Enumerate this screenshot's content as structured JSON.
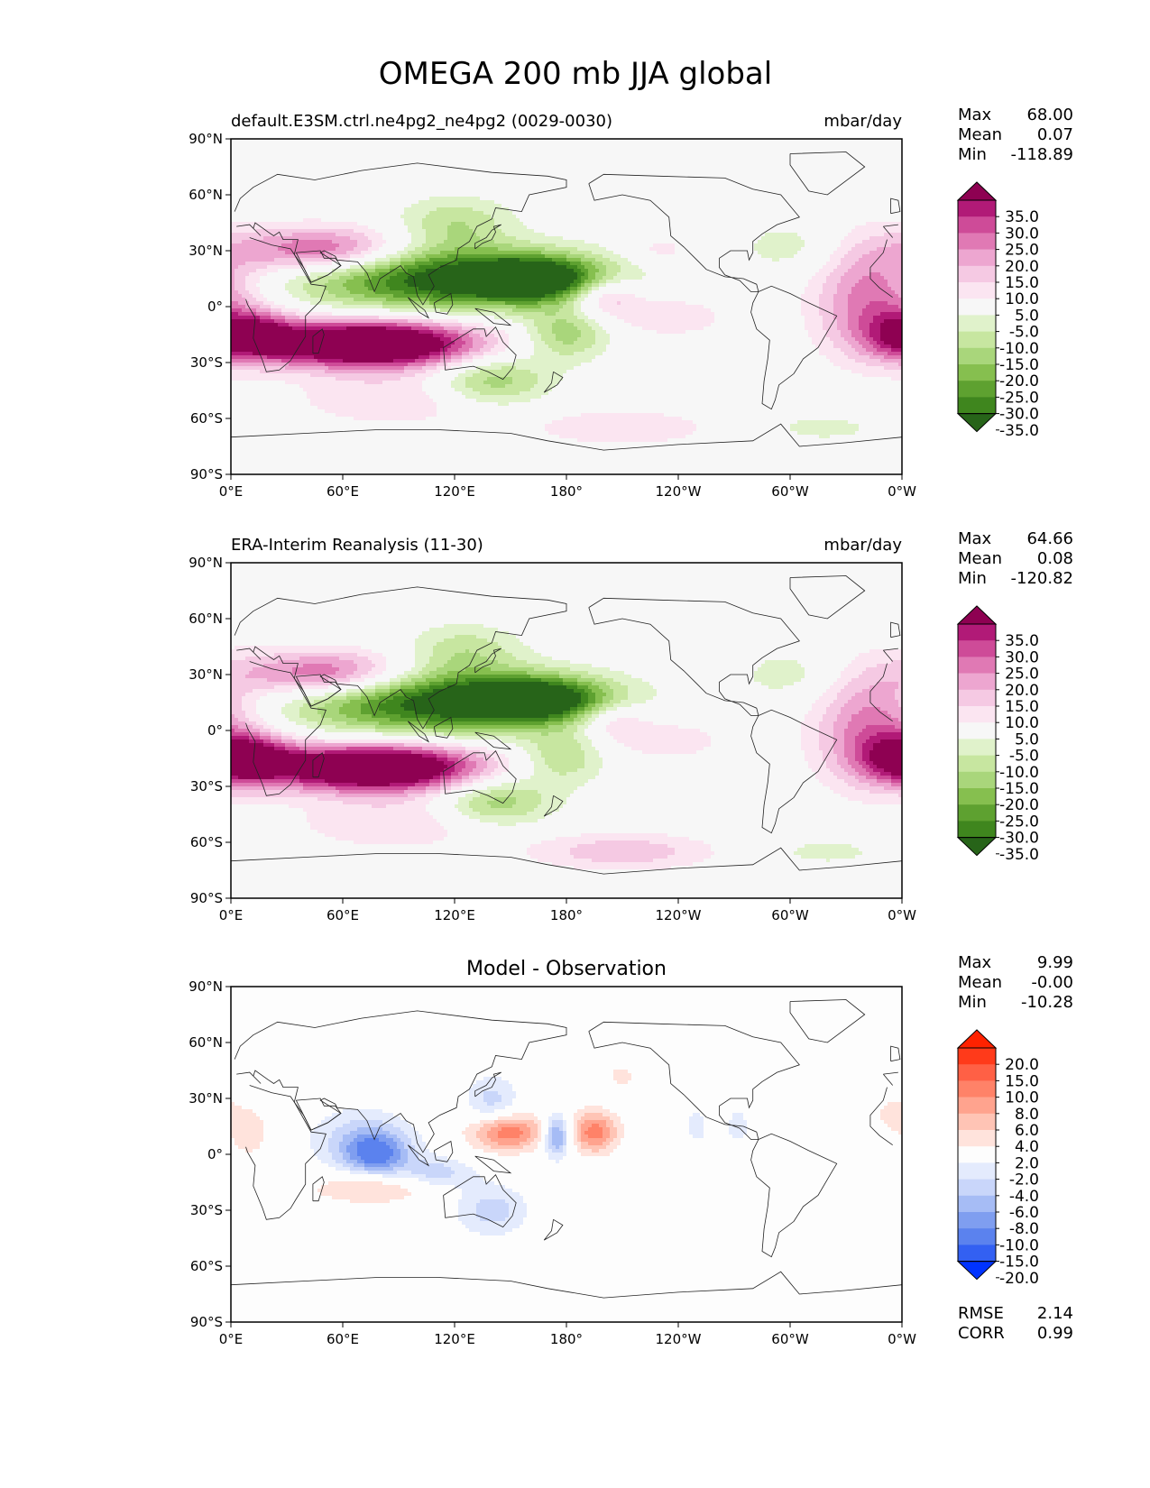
{
  "figure": {
    "title": "OMEGA 200 mb JJA global"
  },
  "axes": {
    "lat_ticks": [
      "90°N",
      "60°N",
      "30°N",
      "0°",
      "30°S",
      "60°S",
      "90°S"
    ],
    "lon_ticks": [
      "0°E",
      "60°E",
      "120°E",
      "180°",
      "120°W",
      "60°W",
      "0°W"
    ]
  },
  "colors": {
    "pg": [
      "#276419",
      "#3f861e",
      "#5ea130",
      "#86bf4f",
      "#a9d67b",
      "#c7e6a0",
      "#e0f2cb",
      "#f7f7f7",
      "#fbe5f1",
      "#f5c9e3",
      "#eda6d0",
      "#e079b4",
      "#ce4b98",
      "#b11a77",
      "#8e0152"
    ],
    "diff": [
      "#0033ff",
      "#3360f2",
      "#5b82ee",
      "#7f9ef0",
      "#a6bcf5",
      "#c9d6fa",
      "#e4ebfd",
      "#fdfdfd",
      "#ffe3dc",
      "#ffc4b5",
      "#ffa38e",
      "#ff8268",
      "#ff6045",
      "#ff3a1a",
      "#ff2200"
    ]
  },
  "panels": [
    {
      "id": "model",
      "left_title": "default.E3SM.ctrl.ne4pg2_ne4pg2 (0029-0030)",
      "center_title": "",
      "right_title": "mbar/day",
      "stats": [
        {
          "label": "Max",
          "value": "68.00"
        },
        {
          "label": "Mean",
          "value": "0.07"
        },
        {
          "label": "Min",
          "value": "-118.89"
        }
      ],
      "colorbar_labels": [
        "35.0",
        "30.0",
        "25.0",
        "20.0",
        "15.0",
        "10.0",
        "5.0",
        "-5.0",
        "-10.0",
        "-15.0",
        "-20.0",
        "-25.0",
        "-30.0",
        "-35.0"
      ],
      "palette": "pg"
    },
    {
      "id": "obs",
      "left_title": "ERA-Interim Reanalysis (11-30)",
      "center_title": "",
      "right_title": "mbar/day",
      "stats": [
        {
          "label": "Max",
          "value": "64.66"
        },
        {
          "label": "Mean",
          "value": "0.08"
        },
        {
          "label": "Min",
          "value": "-120.82"
        }
      ],
      "colorbar_labels": [
        "35.0",
        "30.0",
        "25.0",
        "20.0",
        "15.0",
        "10.0",
        "5.0",
        "-5.0",
        "-10.0",
        "-15.0",
        "-20.0",
        "-25.0",
        "-30.0",
        "-35.0"
      ],
      "palette": "pg"
    },
    {
      "id": "diff",
      "left_title": "",
      "center_title": "Model - Observation",
      "right_title": "",
      "stats": [
        {
          "label": "Max",
          "value": "9.99"
        },
        {
          "label": "Mean",
          "value": "-0.00"
        },
        {
          "label": "Min",
          "value": "-10.28"
        }
      ],
      "colorbar_labels": [
        "20.0",
        "15.0",
        "10.0",
        "8.0",
        "6.0",
        "4.0",
        "2.0",
        "-2.0",
        "-4.0",
        "-6.0",
        "-8.0",
        "-10.0",
        "-15.0",
        "-20.0"
      ],
      "palette": "diff",
      "metrics": [
        {
          "label": "RMSE",
          "value": "2.14"
        },
        {
          "label": "CORR",
          "value": "0.99"
        }
      ]
    }
  ],
  "chart_data": [
    {
      "type": "heatmap",
      "subtype": "filled contour map",
      "variable": "OMEGA 200 mb",
      "units": "mbar/day",
      "lon_range": [
        0,
        360
      ],
      "lat_range": [
        -90,
        90
      ],
      "contour_levels": [
        -35,
        -30,
        -25,
        -20,
        -15,
        -10,
        -5,
        5,
        10,
        15,
        20,
        25,
        30,
        35
      ],
      "features": [
        {
          "kind": "min",
          "lon": 115,
          "lat": 15,
          "value": -40,
          "sx": 55,
          "sy": 12
        },
        {
          "kind": "min",
          "lon": 165,
          "lat": 15,
          "value": -32,
          "sx": 25,
          "sy": 8
        },
        {
          "kind": "min",
          "lon": 120,
          "lat": 45,
          "value": -14,
          "sx": 22,
          "sy": 10
        },
        {
          "kind": "min",
          "lon": 180,
          "lat": -15,
          "value": -18,
          "sx": 16,
          "sy": 10
        },
        {
          "kind": "min",
          "lon": 140,
          "lat": -40,
          "value": -20,
          "sx": 22,
          "sy": 10
        },
        {
          "kind": "min",
          "lon": 300,
          "lat": 32,
          "value": -8,
          "sx": 20,
          "sy": 10
        },
        {
          "kind": "min",
          "lon": 318,
          "lat": -65,
          "value": -7,
          "sx": 25,
          "sy": 6
        },
        {
          "kind": "max",
          "lon": 75,
          "lat": -20,
          "value": 60,
          "sx": 40,
          "sy": 9
        },
        {
          "kind": "max",
          "lon": 10,
          "lat": -15,
          "value": 30,
          "sx": 18,
          "sy": 9
        },
        {
          "kind": "max",
          "lon": 50,
          "lat": 30,
          "value": 30,
          "sx": 32,
          "sy": 9
        },
        {
          "kind": "max",
          "lon": 200,
          "lat": 6,
          "value": 20,
          "sx": 14,
          "sy": 8
        },
        {
          "kind": "max",
          "lon": 235,
          "lat": -5,
          "value": 10,
          "sx": 22,
          "sy": 8
        },
        {
          "kind": "max",
          "lon": 345,
          "lat": 5,
          "value": 25,
          "sx": 22,
          "sy": 22
        },
        {
          "kind": "max",
          "lon": 230,
          "lat": 30,
          "value": 8,
          "sx": 14,
          "sy": 6
        },
        {
          "kind": "max",
          "lon": 90,
          "lat": -50,
          "value": 10,
          "sx": 40,
          "sy": 10
        },
        {
          "kind": "max",
          "lon": 210,
          "lat": -65,
          "value": 10,
          "sx": 35,
          "sy": 7
        }
      ]
    },
    {
      "type": "heatmap",
      "subtype": "filled contour map",
      "variable": "OMEGA 200 mb",
      "units": "mbar/day",
      "lon_range": [
        0,
        360
      ],
      "lat_range": [
        -90,
        90
      ],
      "contour_levels": [
        -35,
        -30,
        -25,
        -20,
        -15,
        -10,
        -5,
        5,
        10,
        15,
        20,
        25,
        30,
        35
      ],
      "features": [
        {
          "kind": "min",
          "lon": 112,
          "lat": 15,
          "value": -40,
          "sx": 55,
          "sy": 12
        },
        {
          "kind": "min",
          "lon": 165,
          "lat": 17,
          "value": -32,
          "sx": 27,
          "sy": 8
        },
        {
          "kind": "min",
          "lon": 125,
          "lat": 43,
          "value": -13,
          "sx": 22,
          "sy": 10
        },
        {
          "kind": "min",
          "lon": 178,
          "lat": -15,
          "value": -15,
          "sx": 16,
          "sy": 10
        },
        {
          "kind": "min",
          "lon": 142,
          "lat": -38,
          "value": -20,
          "sx": 22,
          "sy": 10
        },
        {
          "kind": "min",
          "lon": 300,
          "lat": 30,
          "value": -8,
          "sx": 20,
          "sy": 10
        },
        {
          "kind": "min",
          "lon": 320,
          "lat": -65,
          "value": -7,
          "sx": 25,
          "sy": 6
        },
        {
          "kind": "max",
          "lon": 78,
          "lat": -20,
          "value": 58,
          "sx": 40,
          "sy": 9
        },
        {
          "kind": "max",
          "lon": 8,
          "lat": -15,
          "value": 35,
          "sx": 18,
          "sy": 9
        },
        {
          "kind": "max",
          "lon": 52,
          "lat": 30,
          "value": 30,
          "sx": 32,
          "sy": 9
        },
        {
          "kind": "max",
          "lon": 205,
          "lat": 6,
          "value": 14,
          "sx": 14,
          "sy": 8
        },
        {
          "kind": "max",
          "lon": 235,
          "lat": -5,
          "value": 9,
          "sx": 22,
          "sy": 8
        },
        {
          "kind": "max",
          "lon": 345,
          "lat": 2,
          "value": 25,
          "sx": 22,
          "sy": 22
        },
        {
          "kind": "max",
          "lon": 90,
          "lat": -50,
          "value": 10,
          "sx": 40,
          "sy": 10
        },
        {
          "kind": "max",
          "lon": 210,
          "lat": -65,
          "value": 14,
          "sx": 35,
          "sy": 7
        }
      ]
    },
    {
      "type": "heatmap",
      "subtype": "filled contour map",
      "variable": "OMEGA 200 mb difference",
      "units": "mbar/day",
      "lon_range": [
        0,
        360
      ],
      "lat_range": [
        -90,
        90
      ],
      "contour_levels": [
        -20,
        -15,
        -10,
        -8,
        -6,
        -4,
        -2,
        2,
        4,
        6,
        8,
        10,
        15,
        20
      ],
      "features": [
        {
          "kind": "min",
          "lon": 78,
          "lat": 0,
          "value": -9,
          "sx": 12,
          "sy": 8
        },
        {
          "kind": "min",
          "lon": 70,
          "lat": 8,
          "value": -5,
          "sx": 20,
          "sy": 12
        },
        {
          "kind": "min",
          "lon": 175,
          "lat": 10,
          "value": -10,
          "sx": 5,
          "sy": 8
        },
        {
          "kind": "min",
          "lon": 140,
          "lat": -30,
          "value": -5,
          "sx": 14,
          "sy": 10
        },
        {
          "kind": "min",
          "lon": 110,
          "lat": -10,
          "value": -5,
          "sx": 14,
          "sy": 6
        },
        {
          "kind": "min",
          "lon": 140,
          "lat": 28,
          "value": -5,
          "sx": 10,
          "sy": 10
        },
        {
          "kind": "min",
          "lon": 250,
          "lat": 15,
          "value": -3,
          "sx": 5,
          "sy": 8
        },
        {
          "kind": "min",
          "lon": 272,
          "lat": 15,
          "value": -4,
          "sx": 4,
          "sy": 6
        },
        {
          "kind": "max",
          "lon": 148,
          "lat": 12,
          "value": 10,
          "sx": 14,
          "sy": 7
        },
        {
          "kind": "max",
          "lon": 195,
          "lat": 12,
          "value": 9,
          "sx": 9,
          "sy": 8
        },
        {
          "kind": "max",
          "lon": 75,
          "lat": -18,
          "value": 5,
          "sx": 22,
          "sy": 6
        },
        {
          "kind": "max",
          "lon": 10,
          "lat": 12,
          "value": 3,
          "sx": 10,
          "sy": 12
        },
        {
          "kind": "max",
          "lon": 210,
          "lat": 42,
          "value": 3,
          "sx": 6,
          "sy": 4
        },
        {
          "kind": "max",
          "lon": 355,
          "lat": 22,
          "value": 3,
          "sx": 6,
          "sy": 6
        }
      ]
    }
  ]
}
